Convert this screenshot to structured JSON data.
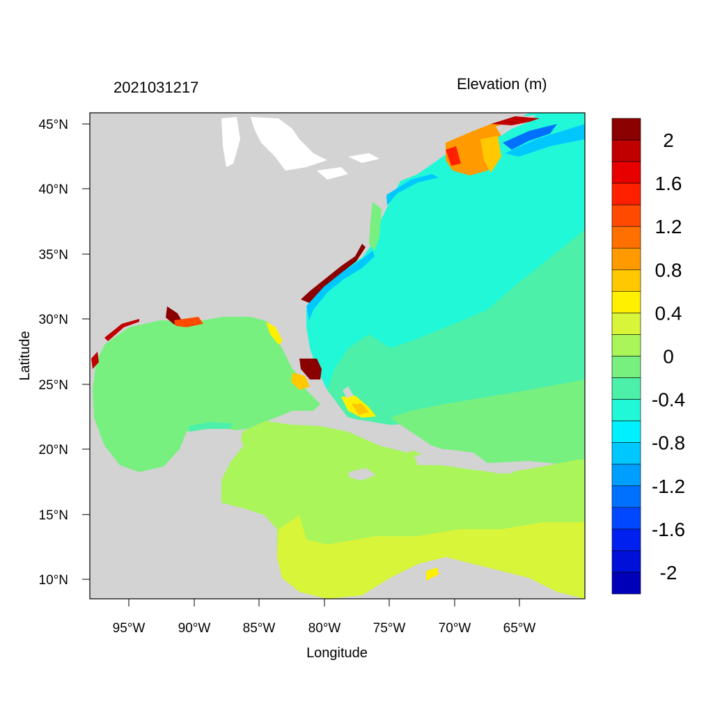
{
  "header": {
    "datetime": "2021031217",
    "variable": "Elevation (m)"
  },
  "axes": {
    "xlabel": "Longitude",
    "ylabel": "Latitude",
    "xticks": [
      "95°W",
      "90°W",
      "85°W",
      "80°W",
      "75°W",
      "70°W",
      "65°W"
    ],
    "yticks": [
      "45°N",
      "40°N",
      "35°N",
      "30°N",
      "25°N",
      "20°N",
      "15°N",
      "10°N"
    ],
    "lon_range": [
      -98,
      -60
    ],
    "lat_range": [
      8.5,
      46
    ]
  },
  "colorbar": {
    "labels": [
      "2",
      "1.6",
      "1.2",
      "0.8",
      "0.4",
      "0",
      "-0.4",
      "-0.8",
      "-1.2",
      "-1.6",
      "-2"
    ],
    "colors": [
      "#8b0000",
      "#c00000",
      "#e80000",
      "#ff2000",
      "#ff4a00",
      "#ff7000",
      "#ff9a00",
      "#ffc800",
      "#fff000",
      "#d8f53a",
      "#aaf55a",
      "#78f080",
      "#4cf0a8",
      "#20f8d8",
      "#00f0ff",
      "#00c8ff",
      "#009eff",
      "#0070ff",
      "#0048ff",
      "#0020f0",
      "#0010d8",
      "#0000b8"
    ]
  },
  "colors": {
    "land": "#d3d3d3",
    "deep_ocean": "#20f8d8",
    "gulf": "#78f080",
    "caribbean": "#aaf55a",
    "south_caribbean": "#d8f53a"
  }
}
